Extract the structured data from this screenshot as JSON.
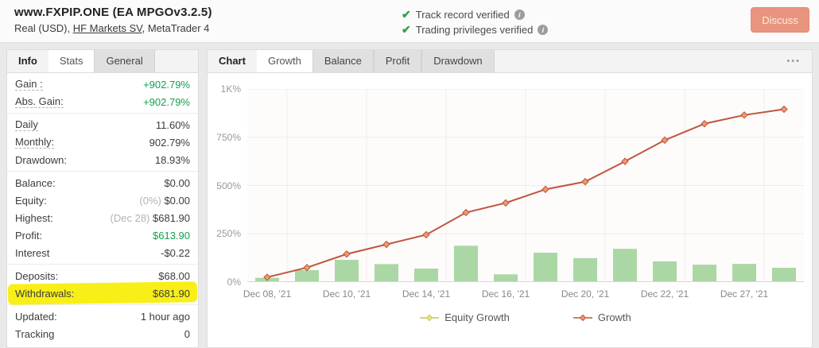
{
  "header": {
    "title": "www.FXPIP.ONE (EA MPGOv3.2.5)",
    "subtitle_prefix": "Real (USD), ",
    "broker_link": "HF Markets SV",
    "subtitle_suffix": ", MetaTrader 4",
    "check_glyph": "✔",
    "info_glyph": "i",
    "badges": [
      {
        "label": "Track record verified"
      },
      {
        "label": "Trading privileges verified"
      }
    ],
    "discuss_label": "Discuss"
  },
  "left_panel": {
    "tabs": [
      {
        "label": "Info",
        "state": "label"
      },
      {
        "label": "Stats",
        "state": "active"
      },
      {
        "label": "General",
        "state": "inactive"
      }
    ],
    "groups": [
      {
        "rows": [
          {
            "label": "Gain :",
            "value": "+902.79%",
            "value_color": "green",
            "tooltip": true
          },
          {
            "label": "Abs. Gain:",
            "value": "+902.79%",
            "value_color": "green",
            "tooltip": true
          }
        ]
      },
      {
        "rows": [
          {
            "label": "Daily",
            "value": "11.60%",
            "tooltip": true
          },
          {
            "label": "Monthly:",
            "value": "902.79%",
            "tooltip": true
          },
          {
            "label": "Drawdown:",
            "value": "18.93%"
          }
        ]
      },
      {
        "rows": [
          {
            "label": "Balance:",
            "value": "$0.00"
          },
          {
            "label": "Equity:",
            "value_muted": "(0%) ",
            "value": "$0.00"
          },
          {
            "label": "Highest:",
            "value_muted": "(Dec 28) ",
            "value": "$681.90"
          },
          {
            "label": "Profit:",
            "value": "$613.90",
            "value_color": "green"
          },
          {
            "label": "Interest",
            "value": "-$0.22"
          }
        ]
      },
      {
        "rows": [
          {
            "label": "Deposits:",
            "value": "$68.00"
          },
          {
            "label": "Withdrawals:",
            "value": "$681.90",
            "highlighted": true
          }
        ]
      },
      {
        "rows": [
          {
            "label": "Updated:",
            "value": "1 hour ago"
          },
          {
            "label": "Tracking",
            "value": "0"
          }
        ]
      }
    ]
  },
  "chart_panel": {
    "tabs": [
      {
        "label": "Chart",
        "state": "label"
      },
      {
        "label": "Growth",
        "state": "active"
      },
      {
        "label": "Balance",
        "state": "inactive"
      },
      {
        "label": "Profit",
        "state": "inactive"
      },
      {
        "label": "Drawdown",
        "state": "inactive"
      }
    ],
    "menu_glyph": "•••"
  },
  "chart_data": {
    "type": "bar+line combo",
    "title": "",
    "xlabel": "",
    "ylabel": "Growth (%)",
    "ylim": [
      0,
      1000
    ],
    "grid": true,
    "legend_position": "bottom",
    "y_ticks": [
      {
        "label": "0%",
        "value": 0
      },
      {
        "label": "250%",
        "value": 250
      },
      {
        "label": "500%",
        "value": 500
      },
      {
        "label": "750%",
        "value": 750
      },
      {
        "label": "1K%",
        "value": 1000
      }
    ],
    "x_tick_labels": [
      "Dec 08, '21",
      "Dec 10, '21",
      "Dec 14, '21",
      "Dec 16, '21",
      "Dec 20, '21",
      "Dec 22, '21",
      "Dec 27, '21"
    ],
    "x_tick_point_indices": [
      0,
      2,
      4,
      6,
      8,
      10,
      12
    ],
    "series": [
      {
        "name": "Equity Growth",
        "type": "bar",
        "color": "#abd7a5",
        "values": [
          22,
          62,
          115,
          93,
          70,
          188,
          40,
          152,
          124,
          172,
          107,
          90,
          94,
          74
        ]
      },
      {
        "name": "Growth",
        "type": "line",
        "color": "#c1543e",
        "marker_fill": "#ec9a6b",
        "values": [
          25,
          75,
          145,
          195,
          245,
          360,
          410,
          480,
          520,
          625,
          735,
          820,
          865,
          895
        ]
      }
    ],
    "legend": [
      {
        "label": "Equity Growth",
        "line_color": "#c3c949",
        "fill_color": "#e9e98a"
      },
      {
        "label": "Growth",
        "line_color": "#c1543e",
        "fill_color": "#ec9a6b"
      }
    ]
  }
}
